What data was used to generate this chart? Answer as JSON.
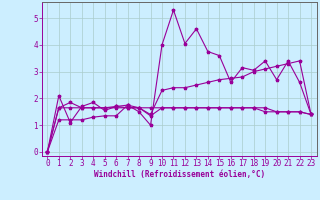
{
  "xlabel": "Windchill (Refroidissement éolien,°C)",
  "bg_color": "#cceeff",
  "grid_color": "#aacccc",
  "line_color": "#990099",
  "x_ticks": [
    0,
    1,
    2,
    3,
    4,
    5,
    6,
    7,
    8,
    9,
    10,
    11,
    12,
    13,
    14,
    15,
    16,
    17,
    18,
    19,
    20,
    21,
    22,
    23
  ],
  "y_ticks": [
    0,
    1,
    2,
    3,
    4,
    5
  ],
  "ylim": [
    -0.15,
    5.6
  ],
  "xlim": [
    -0.5,
    23.5
  ],
  "series1": [
    0.0,
    2.1,
    1.1,
    1.7,
    1.85,
    1.55,
    1.7,
    1.75,
    1.5,
    1.0,
    4.0,
    5.3,
    4.05,
    4.6,
    3.75,
    3.6,
    2.6,
    3.15,
    3.05,
    3.4,
    2.7,
    3.4,
    2.6,
    1.4
  ],
  "series2": [
    0.0,
    1.65,
    1.65,
    1.65,
    1.65,
    1.65,
    1.65,
    1.65,
    1.65,
    1.65,
    1.65,
    1.65,
    1.65,
    1.65,
    1.65,
    1.65,
    1.65,
    1.65,
    1.65,
    1.65,
    1.5,
    1.5,
    1.5,
    1.4
  ],
  "series3": [
    0.0,
    1.2,
    1.2,
    1.2,
    1.3,
    1.35,
    1.35,
    1.75,
    1.65,
    1.4,
    2.3,
    2.4,
    2.4,
    2.5,
    2.6,
    2.7,
    2.75,
    2.8,
    3.0,
    3.1,
    3.2,
    3.3,
    3.4,
    1.4
  ],
  "series4": [
    0.0,
    1.65,
    1.85,
    1.65,
    1.65,
    1.65,
    1.7,
    1.65,
    1.65,
    1.35,
    1.65,
    1.65,
    1.65,
    1.65,
    1.65,
    1.65,
    1.65,
    1.65,
    1.65,
    1.5,
    1.5,
    1.5,
    1.5,
    1.4
  ],
  "tick_fontsize": 5.5,
  "xlabel_fontsize": 5.5,
  "lw": 0.8,
  "markersize": 2.5
}
